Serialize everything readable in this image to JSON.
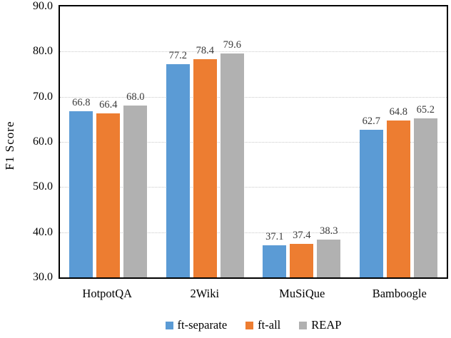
{
  "chart_data": {
    "type": "bar",
    "title": "",
    "xlabel": "",
    "ylabel": "F1 Score",
    "categories": [
      "HotpotQA",
      "2Wiki",
      "MuSiQue",
      "Bamboogle"
    ],
    "series": [
      {
        "name": "ft-separate",
        "color": "#5B9BD5",
        "values": [
          66.8,
          77.2,
          37.1,
          62.7
        ]
      },
      {
        "name": "ft-all",
        "color": "#ED7D31",
        "values": [
          66.4,
          78.4,
          37.4,
          64.8
        ]
      },
      {
        "name": "REAP",
        "color": "#B1B1B1",
        "values": [
          68.0,
          79.6,
          38.3,
          65.2
        ]
      }
    ],
    "ylim": [
      30,
      90
    ],
    "yticks": [
      30,
      40,
      50,
      60,
      70,
      80,
      90
    ],
    "ytick_labels": [
      "30.0",
      "40.0",
      "50.0",
      "60.0",
      "70.0",
      "80.0",
      "90.0"
    ],
    "gridline_values": [
      40,
      50,
      60,
      70,
      80
    ],
    "grid": true,
    "legend_position": "bottom",
    "value_labels_shown": true,
    "value_label_decimals": 1,
    "colors": {
      "axis_border": "#000000",
      "gridline": "#c9c9c9",
      "value_label": "#3a3a3a",
      "background": "#ffffff"
    }
  }
}
